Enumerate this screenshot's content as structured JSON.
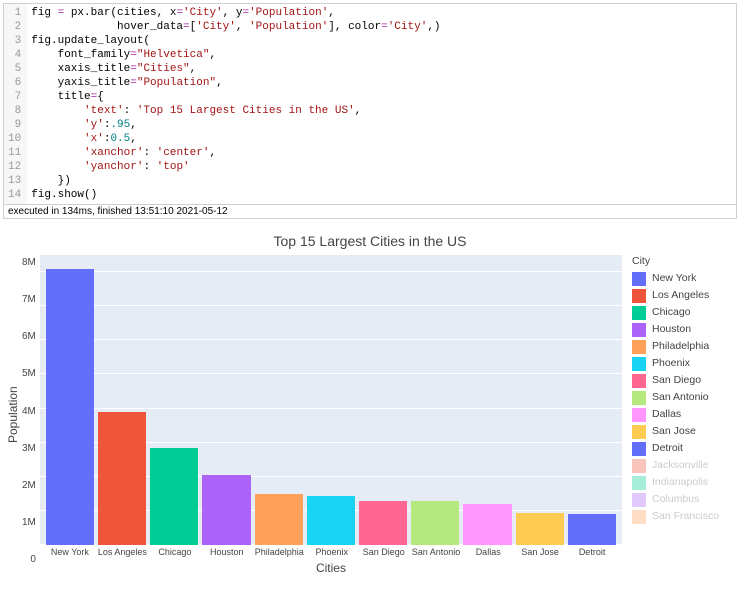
{
  "code": {
    "lines": 14,
    "tokens": [
      [
        [
          "fig ",
          "id"
        ],
        [
          "= ",
          "op"
        ],
        [
          "px.bar(cities, x",
          "fn"
        ],
        [
          "=",
          "op"
        ],
        [
          "'City'",
          "str"
        ],
        [
          ", y",
          "fn"
        ],
        [
          "=",
          "op"
        ],
        [
          "'Population'",
          "str"
        ],
        [
          ",",
          "pun"
        ]
      ],
      [
        [
          "             hover_data",
          "fn"
        ],
        [
          "=",
          "op"
        ],
        [
          "[",
          "pun"
        ],
        [
          "'City'",
          "str"
        ],
        [
          ", ",
          "pun"
        ],
        [
          "'Population'",
          "str"
        ],
        [
          "], color",
          "fn"
        ],
        [
          "=",
          "op"
        ],
        [
          "'City'",
          "str"
        ],
        [
          ",)",
          "pun"
        ]
      ],
      [
        [
          "fig.update_layout(",
          "fn"
        ]
      ],
      [
        [
          "    font_family",
          "fn"
        ],
        [
          "=",
          "op"
        ],
        [
          "\"Helvetica\"",
          "str"
        ],
        [
          ",",
          "pun"
        ]
      ],
      [
        [
          "    xaxis_title",
          "fn"
        ],
        [
          "=",
          "op"
        ],
        [
          "\"Cities\"",
          "str"
        ],
        [
          ",",
          "pun"
        ]
      ],
      [
        [
          "    yaxis_title",
          "fn"
        ],
        [
          "=",
          "op"
        ],
        [
          "\"Population\"",
          "str"
        ],
        [
          ",",
          "pun"
        ]
      ],
      [
        [
          "    title",
          "fn"
        ],
        [
          "=",
          "op"
        ],
        [
          "{",
          "pun"
        ]
      ],
      [
        [
          "        ",
          "pun"
        ],
        [
          "'text'",
          "str"
        ],
        [
          ": ",
          "pun"
        ],
        [
          "'Top 15 Largest Cities in the US'",
          "str"
        ],
        [
          ",",
          "pun"
        ]
      ],
      [
        [
          "        ",
          "pun"
        ],
        [
          "'y'",
          "str"
        ],
        [
          ":",
          "pun"
        ],
        [
          ".95",
          "num"
        ],
        [
          ",",
          "pun"
        ]
      ],
      [
        [
          "        ",
          "pun"
        ],
        [
          "'x'",
          "str"
        ],
        [
          ":",
          "pun"
        ],
        [
          "0.5",
          "num"
        ],
        [
          ",",
          "pun"
        ]
      ],
      [
        [
          "        ",
          "pun"
        ],
        [
          "'xanchor'",
          "str"
        ],
        [
          ": ",
          "pun"
        ],
        [
          "'center'",
          "str"
        ],
        [
          ",",
          "pun"
        ]
      ],
      [
        [
          "        ",
          "pun"
        ],
        [
          "'yanchor'",
          "str"
        ],
        [
          ": ",
          "pun"
        ],
        [
          "'top'",
          "str"
        ]
      ],
      [
        [
          "    })",
          "pun"
        ]
      ],
      [
        [
          "fig.show()",
          "fn"
        ]
      ]
    ]
  },
  "exec_footer": "executed in 134ms, finished 13:51:10 2021-05-12",
  "chart": {
    "type": "bar",
    "title": "Top 15 Largest Cities in the US",
    "title_fontsize": 14,
    "xaxis_title": "Cities",
    "yaxis_title": "Population",
    "background_color": "#e5ecf6",
    "grid_color": "#ffffff",
    "ylim": [
      0,
      8500000
    ],
    "yticks": [
      "8M",
      "7M",
      "6M",
      "5M",
      "4M",
      "3M",
      "2M",
      "1M",
      "0"
    ],
    "ytick_values": [
      8000000,
      7000000,
      6000000,
      5000000,
      4000000,
      3000000,
      2000000,
      1000000,
      0
    ],
    "categories": [
      "New York",
      "Los Angeles",
      "Chicago",
      "Houston",
      "Philadelphia",
      "Phoenix",
      "San Diego",
      "San Antonio",
      "Dallas",
      "San Jose",
      "Detroit"
    ],
    "values": [
      8100000,
      3900000,
      2850000,
      2050000,
      1500000,
      1450000,
      1300000,
      1280000,
      1200000,
      950000,
      900000
    ],
    "bar_colors": [
      "#636efa",
      "#ef553b",
      "#00cc96",
      "#ab63fa",
      "#ffa15a",
      "#19d3f3",
      "#ff6692",
      "#b6e880",
      "#ff97ff",
      "#fecb52",
      "#636efa"
    ]
  },
  "legend": {
    "title": "City",
    "items": [
      {
        "label": "New York",
        "color": "#636efa",
        "faded": false
      },
      {
        "label": "Los Angeles",
        "color": "#ef553b",
        "faded": false
      },
      {
        "label": "Chicago",
        "color": "#00cc96",
        "faded": false
      },
      {
        "label": "Houston",
        "color": "#ab63fa",
        "faded": false
      },
      {
        "label": "Philadelphia",
        "color": "#ffa15a",
        "faded": false
      },
      {
        "label": "Phoenix",
        "color": "#19d3f3",
        "faded": false
      },
      {
        "label": "San Diego",
        "color": "#ff6692",
        "faded": false
      },
      {
        "label": "San Antonio",
        "color": "#b6e880",
        "faded": false
      },
      {
        "label": "Dallas",
        "color": "#ff97ff",
        "faded": false
      },
      {
        "label": "San Jose",
        "color": "#fecb52",
        "faded": false
      },
      {
        "label": "Detroit",
        "color": "#636efa",
        "faded": false
      },
      {
        "label": "Jacksonville",
        "color": "#ef553b",
        "faded": true
      },
      {
        "label": "Indianapolis",
        "color": "#00cc96",
        "faded": true
      },
      {
        "label": "Columbus",
        "color": "#ab63fa",
        "faded": true
      },
      {
        "label": "San Francisco",
        "color": "#ffa15a",
        "faded": true
      }
    ]
  }
}
